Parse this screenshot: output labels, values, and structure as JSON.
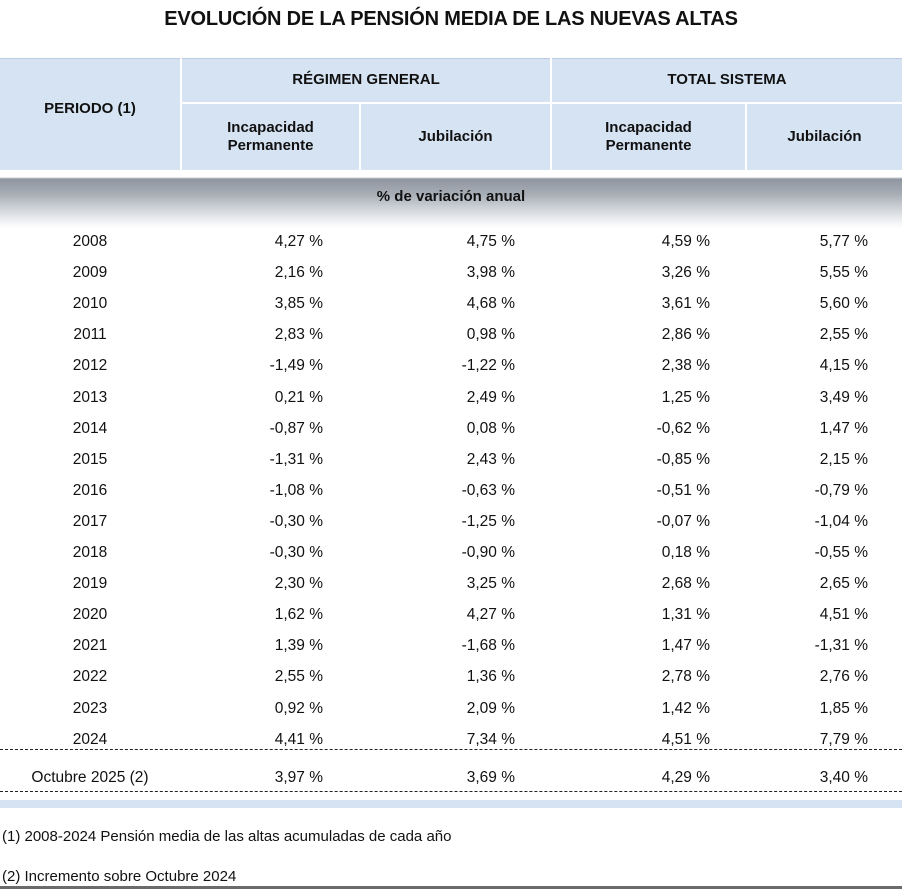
{
  "title": "EVOLUCIÓN DE LA PENSIÓN MEDIA DE LAS NUEVAS ALTAS",
  "header": {
    "periodo": "PERIODO (1)",
    "regimen_general": "RÉGIMEN GENERAL",
    "total_sistema": "TOTAL SISTEMA",
    "incapacidad": "Incapacidad Permanente",
    "jubilacion": "Jubilación"
  },
  "section_label": "% de variación anual",
  "rows": [
    {
      "period": "2008",
      "rg_ip": "4,27 %",
      "rg_jub": "4,75 %",
      "ts_ip": "4,59 %",
      "ts_jub": "5,77 %"
    },
    {
      "period": "2009",
      "rg_ip": "2,16 %",
      "rg_jub": "3,98 %",
      "ts_ip": "3,26 %",
      "ts_jub": "5,55 %"
    },
    {
      "period": "2010",
      "rg_ip": "3,85 %",
      "rg_jub": "4,68 %",
      "ts_ip": "3,61 %",
      "ts_jub": "5,60 %"
    },
    {
      "period": "2011",
      "rg_ip": "2,83 %",
      "rg_jub": "0,98 %",
      "ts_ip": "2,86 %",
      "ts_jub": "2,55 %"
    },
    {
      "period": "2012",
      "rg_ip": "-1,49 %",
      "rg_jub": "-1,22 %",
      "ts_ip": "2,38 %",
      "ts_jub": "4,15 %"
    },
    {
      "period": "2013",
      "rg_ip": "0,21 %",
      "rg_jub": "2,49 %",
      "ts_ip": "1,25 %",
      "ts_jub": "3,49 %"
    },
    {
      "period": "2014",
      "rg_ip": "-0,87 %",
      "rg_jub": "0,08 %",
      "ts_ip": "-0,62 %",
      "ts_jub": "1,47 %"
    },
    {
      "period": "2015",
      "rg_ip": "-1,31 %",
      "rg_jub": "2,43 %",
      "ts_ip": "-0,85 %",
      "ts_jub": "2,15 %"
    },
    {
      "period": "2016",
      "rg_ip": "-1,08 %",
      "rg_jub": "-0,63 %",
      "ts_ip": "-0,51 %",
      "ts_jub": "-0,79 %"
    },
    {
      "period": "2017",
      "rg_ip": "-0,30 %",
      "rg_jub": "-1,25 %",
      "ts_ip": "-0,07 %",
      "ts_jub": "-1,04 %"
    },
    {
      "period": "2018",
      "rg_ip": "-0,30 %",
      "rg_jub": "-0,90 %",
      "ts_ip": "0,18 %",
      "ts_jub": "-0,55 %"
    },
    {
      "period": "2019",
      "rg_ip": "2,30 %",
      "rg_jub": "3,25 %",
      "ts_ip": "2,68 %",
      "ts_jub": "2,65 %"
    },
    {
      "period": "2020",
      "rg_ip": "1,62 %",
      "rg_jub": "4,27 %",
      "ts_ip": "1,31 %",
      "ts_jub": "4,51 %"
    },
    {
      "period": "2021",
      "rg_ip": "1,39 %",
      "rg_jub": "-1,68 %",
      "ts_ip": "1,47 %",
      "ts_jub": "-1,31 %"
    },
    {
      "period": "2022",
      "rg_ip": "2,55 %",
      "rg_jub": "1,36 %",
      "ts_ip": "2,78 %",
      "ts_jub": "2,76 %"
    },
    {
      "period": "2023",
      "rg_ip": "0,92 %",
      "rg_jub": "2,09 %",
      "ts_ip": "1,42 %",
      "ts_jub": "1,85 %"
    },
    {
      "period": "2024",
      "rg_ip": "4,41 %",
      "rg_jub": "7,34 %",
      "ts_ip": "4,51 %",
      "ts_jub": "7,79 %"
    }
  ],
  "last_row": {
    "period": "Octubre 2025 (2)",
    "rg_ip": "3,97 %",
    "rg_jub": "3,69 %",
    "ts_ip": "4,29 %",
    "ts_jub": "3,40 %"
  },
  "footnotes": [
    "(1) 2008-2024 Pensión media de las altas acumuladas de cada año",
    "(2) Incremento sobre Octubre 2024"
  ]
}
